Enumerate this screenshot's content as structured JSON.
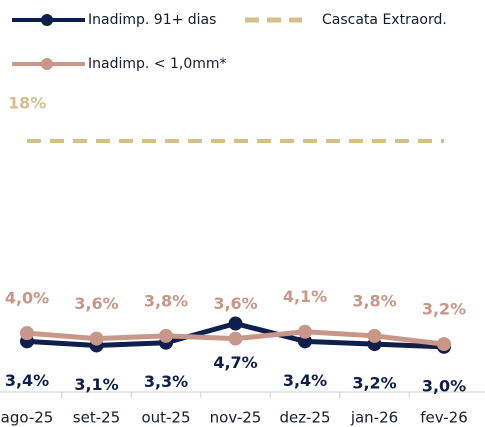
{
  "chart_data": {
    "type": "line",
    "categories": [
      "ago-25",
      "set-25",
      "out-25",
      "nov-25",
      "dez-25",
      "jan-26",
      "fev-26"
    ],
    "series": [
      {
        "name": "Inadimp. 91+ dias",
        "color": "#0f1f4b",
        "values": [
          3.4,
          3.1,
          3.3,
          4.7,
          3.4,
          3.2,
          3.0
        ],
        "value_labels": [
          "3,4%",
          "3,1%",
          "3,3%",
          "4,7%",
          "3,4%",
          "3,2%",
          "3,0%"
        ]
      },
      {
        "name": "Cascata Extraord.",
        "color": "#d4c08a",
        "dashed": true,
        "values": [
          18,
          18,
          18,
          18,
          18,
          18,
          18
        ],
        "value_labels": [
          "18%",
          null,
          null,
          null,
          null,
          null,
          null
        ]
      },
      {
        "name": "Inadimp. < 1,0mm*",
        "color": "#c9968a",
        "values": [
          4.0,
          3.6,
          3.8,
          3.6,
          4.1,
          3.8,
          3.2
        ],
        "value_labels": [
          "4,0%",
          "3,6%",
          "3,8%",
          "3,6%",
          "4,1%",
          "3,8%",
          "3,2%"
        ]
      }
    ],
    "ylim": [
      0,
      25
    ]
  }
}
